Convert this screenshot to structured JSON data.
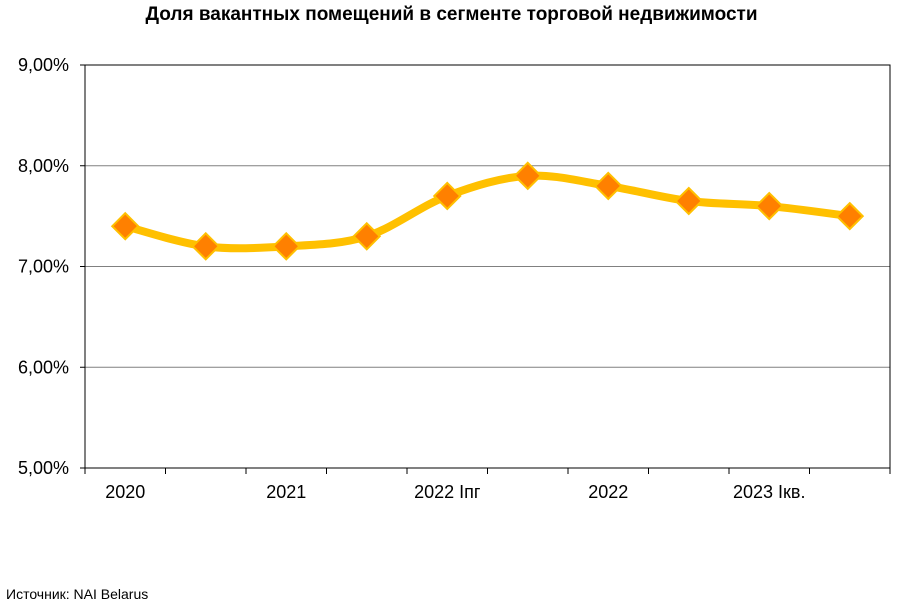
{
  "source": "Источник: NAI Belarus",
  "chart_data": {
    "type": "line",
    "title": "Доля вакантных помещений в сегменте торговой недвижимости",
    "xlabel": "",
    "ylabel": "",
    "ylim": [
      5,
      9
    ],
    "yticks": [
      5,
      6,
      7,
      8,
      9
    ],
    "ytick_labels": [
      "5,00%",
      "6,00%",
      "7,00%",
      "8,00%",
      "9,00%"
    ],
    "grid": true,
    "legend": "none",
    "categories": [
      "2020",
      "",
      "2021",
      "",
      "2022 Iпг",
      "",
      "2022",
      "",
      "2023 Iкв.",
      ""
    ],
    "series": [
      {
        "values": [
          7.4,
          7.2,
          7.2,
          7.3,
          7.7,
          7.9,
          7.8,
          7.65,
          7.6,
          7.5
        ],
        "line_color": "#FFC000",
        "marker_color": "#FF8000",
        "marker_edge": "#FFC000",
        "marker": "diamond"
      }
    ]
  }
}
